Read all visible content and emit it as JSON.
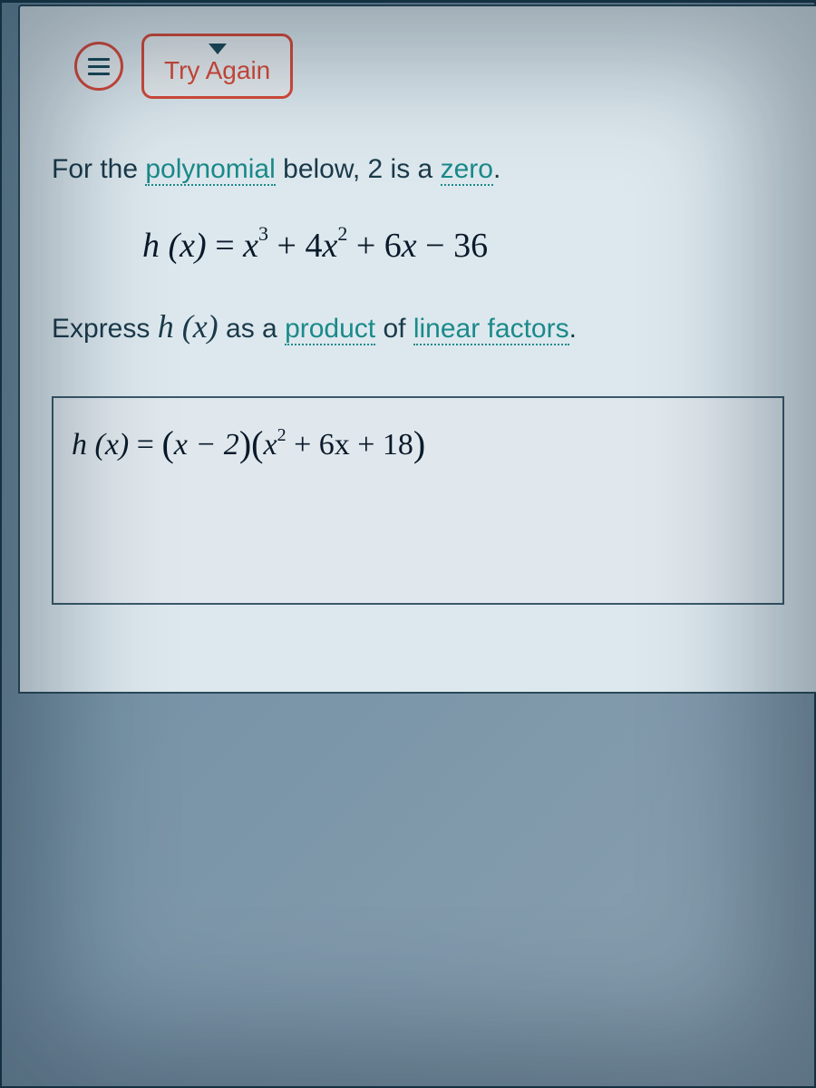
{
  "header": {
    "try_again_label": "Try Again"
  },
  "question": {
    "line1_pre": "For the ",
    "term_polynomial": "polynomial",
    "line1_mid": " below, 2 is a ",
    "term_zero": "zero",
    "line1_post": "."
  },
  "polynomial": {
    "lhs": "h (x)",
    "eq": " = ",
    "rhs_parts": {
      "t1_coef": "",
      "t1_var": "x",
      "t1_exp": "3",
      "t2_op": " + ",
      "t2_coef": "4",
      "t2_var": "x",
      "t2_exp": "2",
      "t3_op": " + ",
      "t3_coef": "6",
      "t3_var": "x",
      "t4_op": " − ",
      "t4_const": "36"
    }
  },
  "express": {
    "pre": "Express ",
    "hx": "h (x)",
    "mid": " as a ",
    "term_product": "product",
    "mid2": " of ",
    "term_linear_factors": "linear factors",
    "post": "."
  },
  "answer": {
    "lhs": "h (x)",
    "eq": " = ",
    "factor1_inner": "x − 2",
    "factor2_parts": {
      "var": "x",
      "exp": "2",
      "t2": "  +  6x  +  18"
    }
  },
  "colors": {
    "accent_red": "#d94a3a",
    "link_teal": "#1a8a8a",
    "text_dark": "#1a3a4a",
    "panel_bg": "#dde8ee",
    "border": "#2a4a5a"
  }
}
